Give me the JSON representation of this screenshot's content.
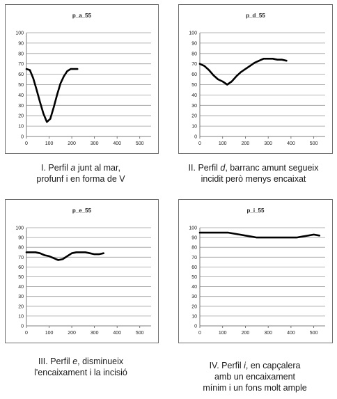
{
  "chart_data": [
    {
      "type": "line",
      "title": "p_a_55",
      "xlabel": "",
      "ylabel": "",
      "xlim": [
        0,
        550
      ],
      "ylim": [
        0,
        100
      ],
      "x_ticks": [
        0,
        100,
        200,
        300,
        400,
        500
      ],
      "y_ticks": [
        0,
        10,
        20,
        30,
        40,
        50,
        60,
        70,
        80,
        90,
        100
      ],
      "grid": "horizontal",
      "legend": "none",
      "line_color": "#000000",
      "series": [
        {
          "x": [
            0,
            15,
            30,
            45,
            60,
            75,
            90,
            105,
            120,
            135,
            150,
            165,
            180,
            195,
            210,
            225
          ],
          "y": [
            65,
            64,
            56,
            45,
            33,
            22,
            14,
            17,
            28,
            40,
            51,
            58,
            63,
            65,
            65,
            65
          ]
        }
      ]
    },
    {
      "type": "line",
      "title": "p_d_55",
      "xlabel": "",
      "ylabel": "",
      "xlim": [
        0,
        550
      ],
      "ylim": [
        0,
        100
      ],
      "x_ticks": [
        0,
        100,
        200,
        300,
        400,
        500
      ],
      "y_ticks": [
        0,
        10,
        20,
        30,
        40,
        50,
        60,
        70,
        80,
        90,
        100
      ],
      "grid": "horizontal",
      "legend": "none",
      "line_color": "#000000",
      "series": [
        {
          "x": [
            0,
            20,
            40,
            60,
            80,
            100,
            120,
            140,
            160,
            180,
            200,
            220,
            240,
            260,
            280,
            300,
            320,
            340,
            360,
            380
          ],
          "y": [
            70,
            68,
            64,
            59,
            55,
            53,
            50,
            53,
            58,
            62,
            65,
            68,
            71,
            73,
            75,
            75,
            75,
            74,
            74,
            73
          ]
        }
      ]
    },
    {
      "type": "line",
      "title": "p_e_55",
      "xlabel": "",
      "ylabel": "",
      "xlim": [
        0,
        550
      ],
      "ylim": [
        0,
        100
      ],
      "x_ticks": [
        0,
        100,
        200,
        300,
        400,
        500
      ],
      "y_ticks": [
        0,
        10,
        20,
        30,
        40,
        50,
        60,
        70,
        80,
        90,
        100
      ],
      "grid": "horizontal",
      "legend": "none",
      "line_color": "#000000",
      "series": [
        {
          "x": [
            0,
            20,
            40,
            60,
            80,
            100,
            120,
            140,
            160,
            180,
            200,
            220,
            240,
            260,
            280,
            300,
            320,
            340
          ],
          "y": [
            75,
            75,
            75,
            74,
            72,
            71,
            69,
            67,
            68,
            71,
            74,
            75,
            75,
            75,
            74,
            73,
            73,
            74
          ]
        }
      ]
    },
    {
      "type": "line",
      "title": "p_i_55",
      "xlabel": "",
      "ylabel": "",
      "xlim": [
        0,
        550
      ],
      "ylim": [
        0,
        100
      ],
      "x_ticks": [
        0,
        100,
        200,
        300,
        400,
        500
      ],
      "y_ticks": [
        0,
        10,
        20,
        30,
        40,
        50,
        60,
        70,
        80,
        90,
        100
      ],
      "grid": "horizontal",
      "legend": "none",
      "line_color": "#000000",
      "series": [
        {
          "x": [
            0,
            25,
            50,
            75,
            100,
            125,
            150,
            175,
            200,
            225,
            250,
            275,
            300,
            325,
            350,
            375,
            400,
            425,
            450,
            475,
            500,
            525
          ],
          "y": [
            95,
            95,
            95,
            95,
            95,
            95,
            94,
            93,
            92,
            91,
            90,
            90,
            90,
            90,
            90,
            90,
            90,
            90,
            91,
            92,
            93,
            92
          ]
        }
      ]
    }
  ],
  "captions": [
    {
      "line1_pre": "I. Perfil ",
      "line1_em": "a",
      "line1_post": " junt al mar,",
      "line2": "profunf i en forma de V"
    },
    {
      "line1_pre": "II. Perfil ",
      "line1_em": "d",
      "line1_post": ", barranc amunt segueix",
      "line2": "incidit però menys encaixat"
    },
    {
      "line1_pre": "III. Perfil ",
      "line1_em": "e",
      "line1_post": ", disminueix",
      "line2": "l'encaixament i la incisió"
    },
    {
      "line1_pre": "IV. Perfil ",
      "line1_em": "i",
      "line1_post": ", en capçalera",
      "line2": "amb un encaixament",
      "line3": "mínim i un fons molt ample"
    }
  ]
}
